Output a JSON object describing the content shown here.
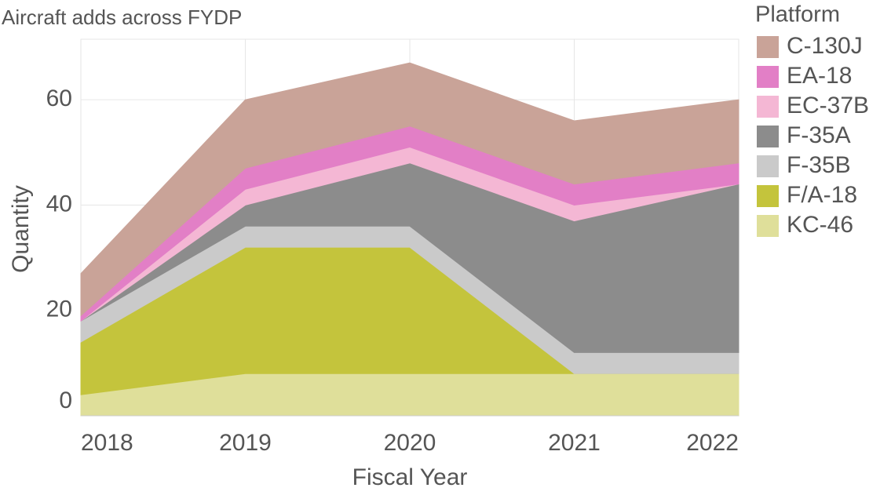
{
  "chart_data": {
    "type": "stacked_area",
    "title": "Aircraft adds across FYDP",
    "x_label": "Fiscal Year",
    "y_label": "Quantity",
    "legend_title": "Platform",
    "categories": [
      "2018",
      "2019",
      "2020",
      "2021",
      "2022"
    ],
    "series": [
      {
        "name": "C-130J",
        "color": "#c9a398",
        "values": [
          8,
          13,
          12,
          12,
          12
        ]
      },
      {
        "name": "EA-18",
        "color": "#e27fc6",
        "values": [
          1,
          4,
          4,
          4,
          4
        ]
      },
      {
        "name": "EC-37B",
        "color": "#f4b7d4",
        "values": [
          0,
          3,
          3,
          3,
          0
        ]
      },
      {
        "name": "F-35A",
        "color": "#8c8c8c",
        "values": [
          0,
          4,
          12,
          25,
          32
        ]
      },
      {
        "name": "F-35B",
        "color": "#cacaca",
        "values": [
          4,
          4,
          4,
          4,
          4
        ]
      },
      {
        "name": "F/A-18",
        "color": "#c4c43c",
        "values": [
          10,
          24,
          24,
          0,
          0
        ]
      },
      {
        "name": "KC-46",
        "color": "#dfdf9a",
        "values": [
          4,
          8,
          8,
          8,
          8
        ]
      }
    ],
    "ylim": [
      0,
      70
    ],
    "yticks": [
      0,
      20,
      40,
      60
    ],
    "grid": true,
    "legend": "right"
  }
}
